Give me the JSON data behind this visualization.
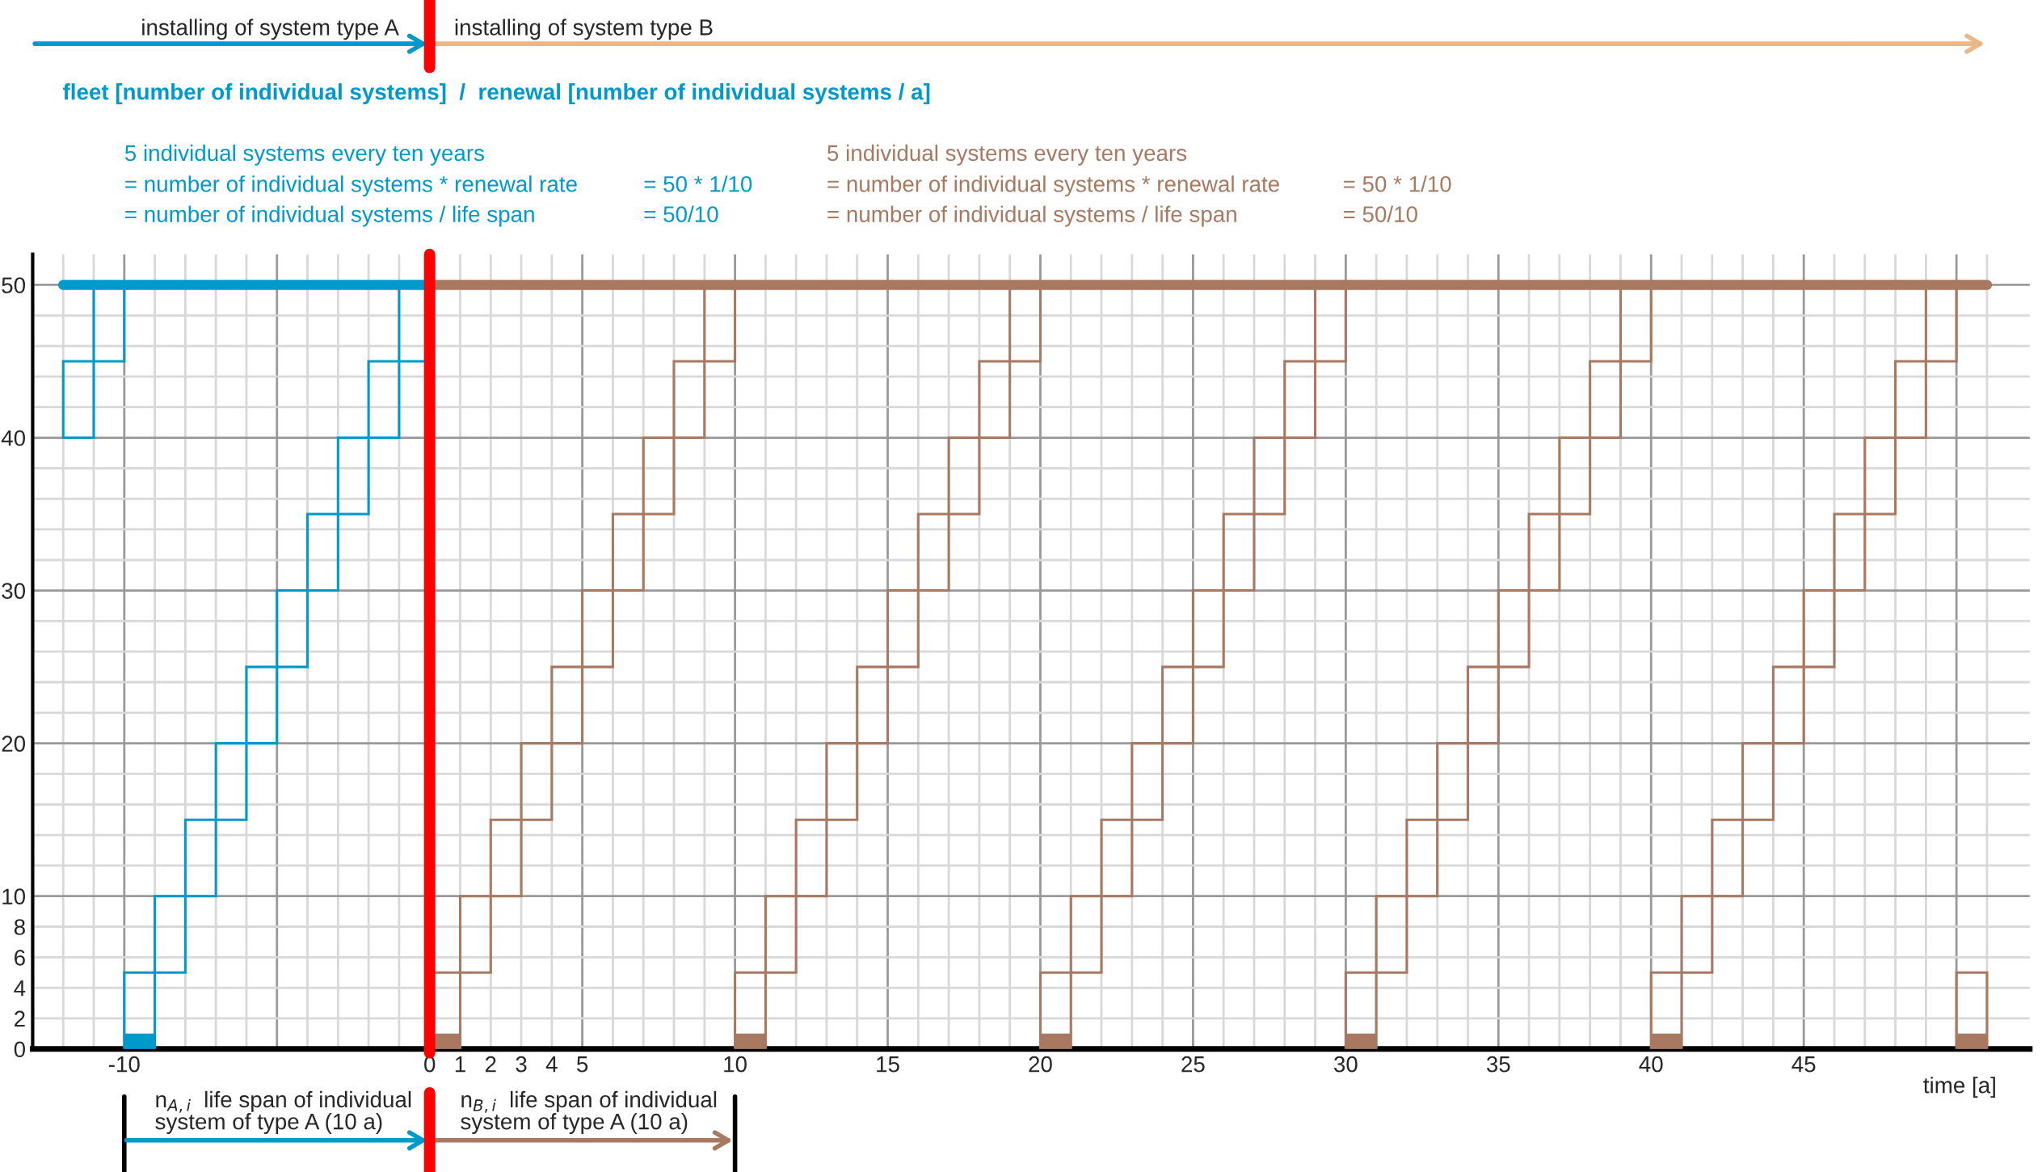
{
  "chart_data": {
    "type": "bar",
    "xlabel": "time [a]",
    "xlim": [
      -13,
      52.4
    ],
    "ylim": [
      0,
      52
    ],
    "xticks": [
      {
        "value": -12,
        "label": null
      },
      {
        "value": -11,
        "label": null
      },
      -10,
      {
        "value": -9,
        "label": null
      },
      {
        "value": -8,
        "label": null
      },
      {
        "value": -7,
        "label": null
      },
      {
        "value": -6,
        "label": null
      },
      {
        "value": -5,
        "label": null
      },
      {
        "value": -4,
        "label": null
      },
      {
        "value": -3,
        "label": null
      },
      {
        "value": -2,
        "label": null
      },
      {
        "value": -1,
        "label": null
      },
      0,
      1,
      2,
      3,
      4,
      5,
      {
        "value": 6,
        "label": null
      },
      {
        "value": 7,
        "label": null
      },
      {
        "value": 8,
        "label": null
      },
      {
        "value": 9,
        "label": null
      },
      10,
      {
        "value": 11,
        "label": null
      },
      {
        "value": 12,
        "label": null
      },
      {
        "value": 13,
        "label": null
      },
      {
        "value": 14,
        "label": null
      },
      15,
      {
        "value": 16,
        "label": null
      },
      {
        "value": 17,
        "label": null
      },
      {
        "value": 18,
        "label": null
      },
      {
        "value": 19,
        "label": null
      },
      20,
      {
        "value": 21,
        "label": null
      },
      {
        "value": 22,
        "label": null
      },
      {
        "value": 23,
        "label": null
      },
      {
        "value": 24,
        "label": null
      },
      25,
      {
        "value": 26,
        "label": null
      },
      {
        "value": 27,
        "label": null
      },
      {
        "value": 28,
        "label": null
      },
      {
        "value": 29,
        "label": null
      },
      30,
      {
        "value": 31,
        "label": null
      },
      {
        "value": 32,
        "label": null
      },
      {
        "value": 33,
        "label": null
      },
      {
        "value": 34,
        "label": null
      },
      35,
      {
        "value": 36,
        "label": null
      },
      {
        "value": 37,
        "label": null
      },
      {
        "value": 38,
        "label": null
      },
      {
        "value": 39,
        "label": null
      },
      40,
      {
        "value": 41,
        "label": null
      },
      {
        "value": 42,
        "label": null
      },
      {
        "value": 43,
        "label": null
      },
      {
        "value": 44,
        "label": null
      },
      45,
      {
        "value": 46,
        "label": null
      },
      {
        "value": 47,
        "label": null
      },
      {
        "value": 48,
        "label": null
      },
      {
        "value": 49,
        "label": null
      },
      {
        "value": 50,
        "label": null
      },
      {
        "value": 51,
        "label": null
      }
    ],
    "yticks": [
      0,
      2,
      4,
      6,
      8,
      10,
      {
        "value": 12,
        "label": null
      },
      {
        "value": 14,
        "label": null
      },
      {
        "value": 16,
        "label": null
      },
      {
        "value": 18,
        "label": null
      },
      20,
      {
        "value": 22,
        "label": null
      },
      {
        "value": 24,
        "label": null
      },
      {
        "value": 26,
        "label": null
      },
      {
        "value": 28,
        "label": null
      },
      30,
      {
        "value": 32,
        "label": null
      },
      {
        "value": 34,
        "label": null
      },
      {
        "value": 36,
        "label": null
      },
      {
        "value": 38,
        "label": null
      },
      40,
      {
        "value": 42,
        "label": null
      },
      {
        "value": 44,
        "label": null
      },
      {
        "value": 46,
        "label": null
      },
      {
        "value": 48,
        "label": null
      },
      50
    ],
    "grid": true,
    "series": [
      {
        "color": "#0099cc",
        "x": [
          -12,
          -11,
          -10,
          -9,
          -8,
          -7,
          -6,
          -5,
          -4,
          -3,
          -2,
          -1
        ],
        "base": [
          40,
          45,
          0,
          5,
          10,
          15,
          20,
          25,
          30,
          35,
          40,
          45
        ],
        "values": [
          5,
          5,
          5,
          5,
          5,
          5,
          5,
          5,
          5,
          5,
          5,
          5
        ]
      },
      {
        "color": "#a87860",
        "x": [
          0,
          1,
          2,
          3,
          4,
          5,
          6,
          7,
          8,
          9,
          10,
          11,
          12,
          13,
          14,
          15,
          16,
          17,
          18,
          19,
          20,
          21,
          22,
          23,
          24,
          25,
          26,
          27,
          28,
          29,
          30,
          31,
          32,
          33,
          34,
          35,
          36,
          37,
          38,
          39,
          40,
          41,
          42,
          43,
          44,
          45,
          46,
          47,
          48,
          49,
          50
        ],
        "base": [
          0,
          5,
          10,
          15,
          20,
          25,
          30,
          35,
          40,
          45,
          0,
          5,
          10,
          15,
          20,
          25,
          30,
          35,
          40,
          45,
          0,
          5,
          10,
          15,
          20,
          25,
          30,
          35,
          40,
          45,
          0,
          5,
          10,
          15,
          20,
          25,
          30,
          35,
          40,
          45,
          0,
          5,
          10,
          15,
          20,
          25,
          30,
          35,
          40,
          45,
          0
        ],
        "values": [
          5,
          5,
          5,
          5,
          5,
          5,
          5,
          5,
          5,
          5,
          5,
          5,
          5,
          5,
          5,
          5,
          5,
          5,
          5,
          5,
          5,
          5,
          5,
          5,
          5,
          5,
          5,
          5,
          5,
          5,
          5,
          5,
          5,
          5,
          5,
          5,
          5,
          5,
          5,
          5,
          5,
          5,
          5,
          5,
          5,
          5,
          5,
          5,
          5,
          5,
          5
        ]
      },
      {
        "color": "#0099cc",
        "x": [
          -10
        ],
        "values": [
          1
        ]
      },
      {
        "color": "#a87860",
        "x": [
          0,
          10,
          20,
          30,
          40,
          50
        ],
        "values": [
          1,
          1,
          1,
          1,
          1,
          1
        ]
      },
      {
        "type": "line",
        "color": "#0099cc",
        "x": [
          -12,
          0
        ],
        "values": [
          50,
          50
        ]
      },
      {
        "type": "line",
        "color": "#a87860",
        "x": [
          0,
          51
        ],
        "values": [
          50,
          50
        ]
      }
    ],
    "ref_lines": [
      {
        "axis": "x",
        "value": 0,
        "color": "#ff0000"
      }
    ],
    "annotations": [
      "installing of system type A",
      "installing of system type B",
      "5 individual systems every ten years",
      "= number of individual systems * renewal rate",
      "= 50 * 1/10",
      "= number of individual systems / life span",
      "= 50/10",
      "5 individual systems every ten years",
      "= number of individual systems * renewal rate",
      "= 50 * 1/10",
      "= number of individual systems / life span",
      "= 50/10",
      "n$_{A,i}$  life span of individual\nsystem of type A (10 a)",
      "n$_{B,i}$  life span of individual\nsystem of type A (10 a)",
      "fleet [number of individual systems]  /  renewal [number of individual systems / a]"
    ]
  }
}
